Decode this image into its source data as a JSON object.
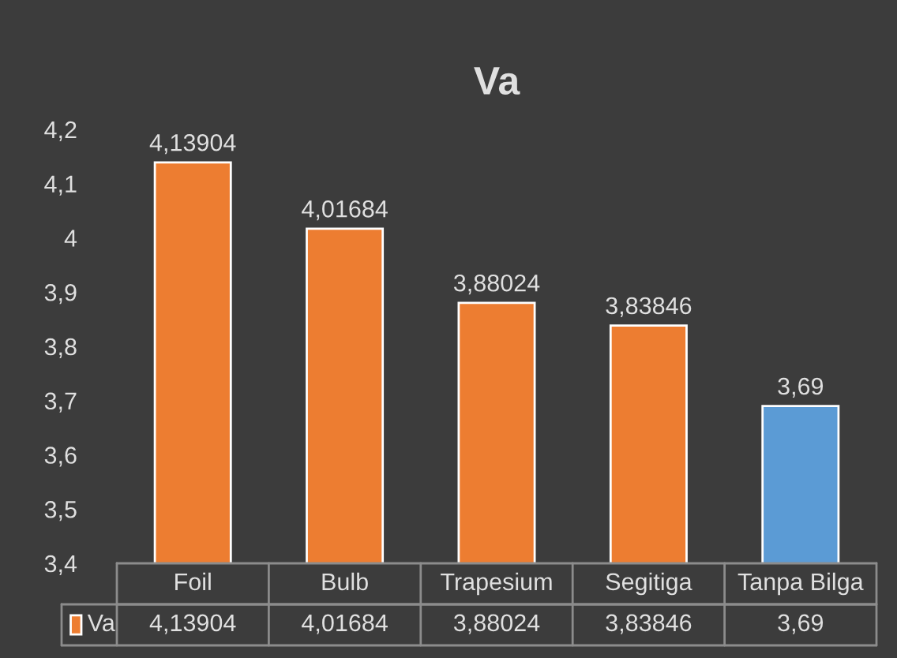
{
  "chart_data": {
    "type": "bar",
    "title": "Va",
    "categories": [
      "Foil",
      "Bulb",
      "Trapesium",
      "Segitiga",
      "Tanpa Bilga"
    ],
    "series": [
      {
        "name": "Va",
        "color": "#ed7d31",
        "colors": [
          "#ed7d31",
          "#ed7d31",
          "#ed7d31",
          "#ed7d31",
          "#5b9bd5"
        ],
        "values": [
          4.13904,
          4.01684,
          3.88024,
          3.83846,
          3.69
        ],
        "value_labels": [
          "4,13904",
          "4,01684",
          "3,88024",
          "3,83846",
          "3,69"
        ]
      }
    ],
    "ylim": [
      3.4,
      4.2
    ],
    "yticks": [
      {
        "value": 3.4,
        "label": "3,4"
      },
      {
        "value": 3.5,
        "label": "3,5"
      },
      {
        "value": 3.6,
        "label": "3,6"
      },
      {
        "value": 3.7,
        "label": "3,7"
      },
      {
        "value": 3.8,
        "label": "3,8"
      },
      {
        "value": 3.9,
        "label": "3,9"
      },
      {
        "value": 4,
        "label": "4"
      },
      {
        "value": 4.1,
        "label": "4,1"
      },
      {
        "value": 4.2,
        "label": "4,2"
      }
    ],
    "grid": false,
    "legend": "bottom"
  }
}
